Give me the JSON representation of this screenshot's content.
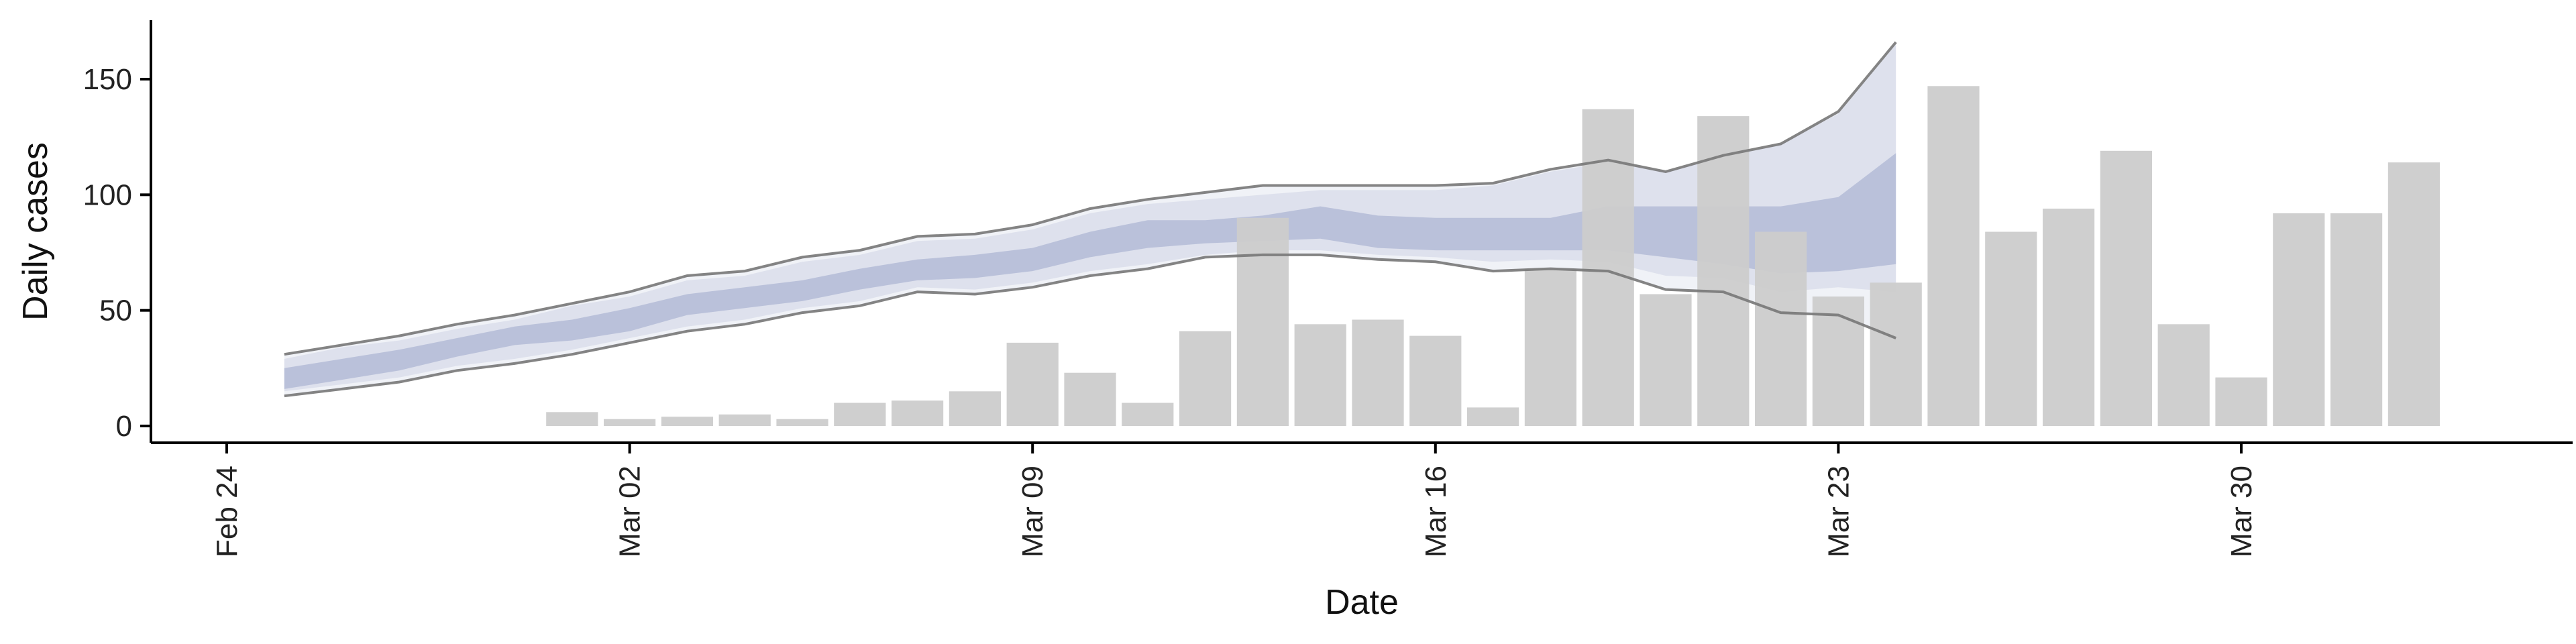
{
  "chart_data": {
    "type": "bar",
    "xlabel": "Date",
    "ylabel": "Daily cases",
    "title": "",
    "grid": false,
    "legend": "none",
    "xlim": [
      "2020-02-24",
      "2020-04-04"
    ],
    "ylim": [
      -8,
      175
    ],
    "x_ticks": [
      {
        "date": "2020-02-24",
        "label": "Feb 24"
      },
      {
        "date": "2020-03-02",
        "label": "Mar 02"
      },
      {
        "date": "2020-03-09",
        "label": "Mar 09"
      },
      {
        "date": "2020-03-16",
        "label": "Mar 16"
      },
      {
        "date": "2020-03-23",
        "label": "Mar 23"
      },
      {
        "date": "2020-03-30",
        "label": "Mar 30"
      }
    ],
    "y_ticks": [
      0,
      50,
      100,
      150
    ],
    "colors": {
      "bars": "#cccccc",
      "band_outer": "#bcc3da",
      "band_inner": "#8f9bc3",
      "bound_lines": "#777777",
      "axis": "#000000"
    },
    "series": [
      {
        "kind": "bars",
        "start_date": "2020-03-01",
        "values": [
          6,
          3,
          4,
          5,
          3,
          10,
          11,
          15,
          36,
          23,
          10,
          41,
          90,
          44,
          46,
          39,
          8,
          68,
          137,
          57,
          134,
          84,
          56,
          62,
          147,
          84,
          94,
          119,
          44,
          21,
          92,
          92,
          114
        ]
      },
      {
        "kind": "band",
        "start_date": "2020-02-25",
        "lower_bound": [
          13,
          16,
          19,
          24,
          27,
          31,
          36,
          41,
          44,
          49,
          52,
          58,
          57,
          60,
          65,
          68,
          73,
          74,
          74,
          72,
          71,
          67,
          68,
          67,
          59,
          58,
          49,
          48,
          38
        ],
        "outer_low": [
          15,
          18,
          21,
          26,
          29,
          33,
          38,
          43,
          46,
          51,
          54,
          60,
          59,
          62,
          67,
          70,
          74,
          76,
          76,
          74,
          73,
          71,
          72,
          71,
          65,
          64,
          58,
          60,
          58
        ],
        "inner_low": [
          16,
          20,
          24,
          30,
          35,
          37,
          41,
          48,
          51,
          54,
          59,
          63,
          64,
          67,
          73,
          77,
          79,
          80,
          81,
          77,
          76,
          76,
          76,
          76,
          73,
          70,
          66,
          67,
          70
        ],
        "inner_high": [
          25,
          29,
          33,
          38,
          43,
          46,
          51,
          57,
          60,
          63,
          68,
          72,
          74,
          77,
          84,
          89,
          89,
          91,
          95,
          91,
          90,
          90,
          90,
          95,
          95,
          95,
          95,
          99,
          118
        ],
        "outer_high": [
          29,
          34,
          37,
          42,
          46,
          52,
          56,
          63,
          65,
          71,
          74,
          80,
          81,
          85,
          92,
          96,
          98,
          100,
          102,
          102,
          102,
          104,
          110,
          114,
          110,
          116,
          122,
          135,
          165
        ],
        "upper_bound": [
          31,
          35,
          39,
          44,
          48,
          53,
          58,
          65,
          67,
          73,
          76,
          82,
          83,
          87,
          94,
          98,
          101,
          104,
          104,
          104,
          104,
          105,
          111,
          115,
          110,
          117,
          122,
          136,
          166
        ]
      }
    ]
  }
}
